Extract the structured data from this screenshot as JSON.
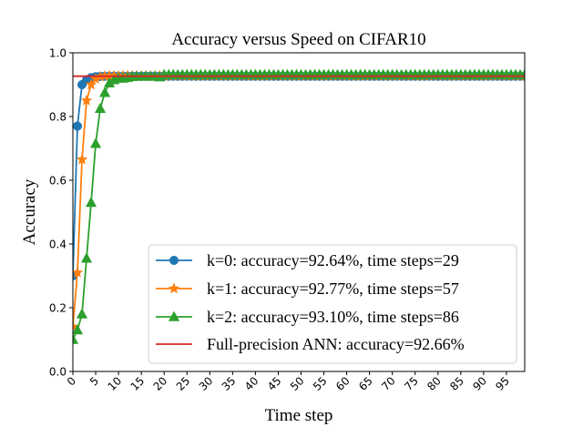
{
  "chart_data": {
    "type": "line",
    "title": "Accuracy versus Speed on CIFAR10",
    "xlabel": "Time step",
    "ylabel": "Accuracy",
    "xlim": [
      0,
      99
    ],
    "ylim": [
      0.0,
      1.0
    ],
    "x_ticks": [
      0,
      5,
      10,
      15,
      20,
      25,
      30,
      35,
      40,
      45,
      50,
      55,
      60,
      65,
      70,
      75,
      80,
      85,
      90,
      95
    ],
    "y_ticks": [
      0.0,
      0.2,
      0.4,
      0.6,
      0.8,
      1.0
    ],
    "x_tick_labels": [
      "0",
      "5",
      "10",
      "15",
      "20",
      "25",
      "30",
      "35",
      "40",
      "45",
      "50",
      "55",
      "60",
      "65",
      "70",
      "75",
      "80",
      "85",
      "90",
      "95"
    ],
    "y_tick_labels": [
      "0.0",
      "0.2",
      "0.4",
      "0.6",
      "0.8",
      "1.0"
    ],
    "grid": false,
    "legend_position": "lower-right",
    "series": [
      {
        "name": "k=0: accuracy=92.64%, time steps=29",
        "color": "#1f77b4",
        "marker": "circle",
        "early_values": [
          0.3,
          0.77,
          0.9,
          0.915,
          0.922,
          0.925,
          0.926
        ],
        "plateau_value": 0.9264
      },
      {
        "name": "k=1: accuracy=92.77%, time steps=57",
        "color": "#ff7f0e",
        "marker": "star",
        "early_values": [
          0.14,
          0.31,
          0.665,
          0.85,
          0.9,
          0.918,
          0.925,
          0.927
        ],
        "plateau_value": 0.9277
      },
      {
        "name": "k=2: accuracy=93.10%, time steps=86",
        "color": "#2ca02c",
        "marker": "triangle",
        "early_values": [
          0.1,
          0.13,
          0.18,
          0.355,
          0.53,
          0.715,
          0.825,
          0.875,
          0.905,
          0.915,
          0.92,
          0.92,
          0.922,
          0.925,
          0.926,
          0.926,
          0.926,
          0.926,
          0.926,
          0.924
        ],
        "plateau_value": 0.931
      },
      {
        "name": "Full-precision ANN: accuracy=92.66%",
        "color": "#d62728",
        "marker": "none",
        "constant_value": 0.9266
      }
    ]
  }
}
